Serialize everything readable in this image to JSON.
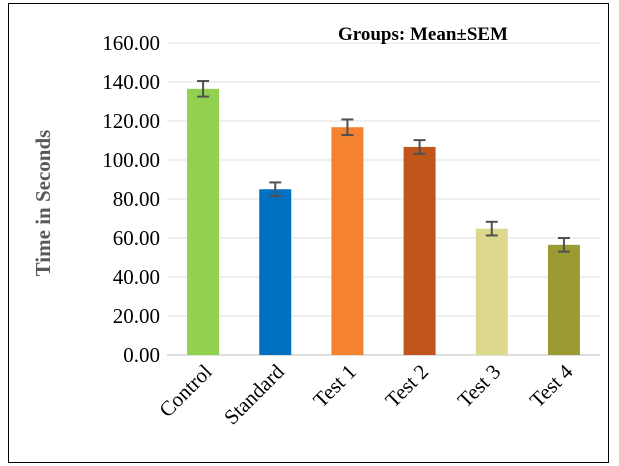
{
  "chart_data": {
    "type": "bar",
    "title": "Groups: Mean±SEM",
    "xlabel": "",
    "ylabel": "Time in Seconds",
    "ylim": [
      0,
      160
    ],
    "yticks": [
      "0.00",
      "20.00",
      "40.00",
      "60.00",
      "80.00",
      "100.00",
      "120.00",
      "140.00",
      "160.00"
    ],
    "grid": true,
    "categories": [
      "Control",
      "Standard",
      "Test 1",
      "Test 2",
      "Test 3",
      "Test 4"
    ],
    "values": [
      136.5,
      85.0,
      116.8,
      106.7,
      64.8,
      56.5
    ],
    "errors": [
      4.0,
      3.5,
      4.0,
      3.5,
      3.5,
      3.5
    ],
    "colors": [
      "#92d050",
      "#0070c0",
      "#f58231",
      "#c0561a",
      "#dcd98c",
      "#9b9a33"
    ]
  }
}
